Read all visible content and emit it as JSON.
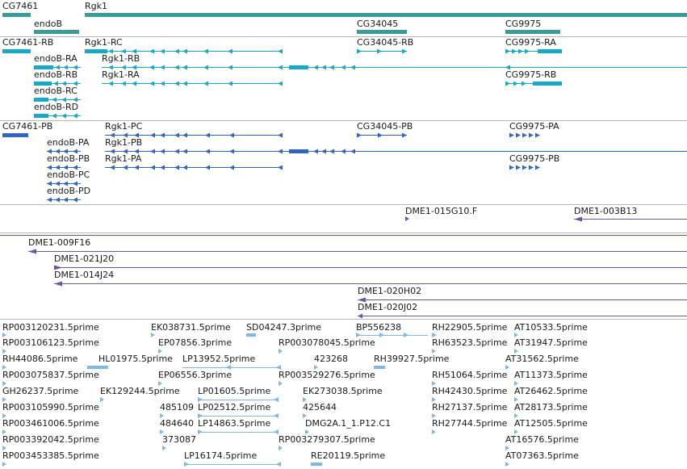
{
  "colors": {
    "gene": "#3a9c98",
    "mrna": "#17a8c9",
    "protein": "#2f66c6",
    "clone": "#6b55a3",
    "est": "#80b7de",
    "separator": "#b8b8b8",
    "text": "#1a1a1a"
  },
  "tracks": {
    "genes": {
      "items": [
        {
          "label": "CG7461"
        },
        {
          "label": "Rgk1"
        },
        {
          "label": "endoB"
        },
        {
          "label": "CG34045"
        },
        {
          "label": "CG9975"
        }
      ]
    },
    "transcripts": {
      "items": [
        {
          "label": "CG7461-RB"
        },
        {
          "label": "Rgk1-RC"
        },
        {
          "label": "CG34045-RB"
        },
        {
          "label": "CG9975-RA"
        },
        {
          "label": "endoB-RA"
        },
        {
          "label": "Rgk1-RB"
        },
        {
          "label": "endoB-RB"
        },
        {
          "label": "Rgk1-RA"
        },
        {
          "label": "CG9975-RB"
        },
        {
          "label": "endoB-RC"
        },
        {
          "label": "endoB-RD"
        }
      ]
    },
    "proteins": {
      "items": [
        {
          "label": "CG7461-PB"
        },
        {
          "label": "Rgk1-PC"
        },
        {
          "label": "CG34045-PB"
        },
        {
          "label": "CG9975-PA"
        },
        {
          "label": "endoB-PA"
        },
        {
          "label": "Rgk1-PB"
        },
        {
          "label": "endoB-PB"
        },
        {
          "label": "Rgk1-PA"
        },
        {
          "label": "CG9975-PB"
        },
        {
          "label": "endoB-PC"
        },
        {
          "label": "endoB-PD"
        }
      ]
    },
    "clones_a": {
      "items": [
        {
          "label": "DME1-015G10.F"
        },
        {
          "label": "DME1-003B13"
        }
      ]
    },
    "clones_b": {
      "items": [
        {
          "label": "DME1-009F16"
        },
        {
          "label": "DME1-021J20"
        },
        {
          "label": "DME1-014J24"
        },
        {
          "label": "DME1-020H02"
        },
        {
          "label": "DME1-020J02"
        }
      ]
    },
    "ests": {
      "items": [
        {
          "label": "RP003120231.5prime"
        },
        {
          "label": "EK038731.5prime"
        },
        {
          "label": "SD04247.3prime"
        },
        {
          "label": "BP556238"
        },
        {
          "label": "RH22905.5prime"
        },
        {
          "label": "AT10533.5prime"
        },
        {
          "label": "RP003106123.5prime"
        },
        {
          "label": "EP07856.3prime"
        },
        {
          "label": "RP003078045.5prime"
        },
        {
          "label": "RH63523.5prime"
        },
        {
          "label": "AT31947.5prime"
        },
        {
          "label": "RH44086.5prime"
        },
        {
          "label": "HL01975.5prime"
        },
        {
          "label": "LP13952.5prime"
        },
        {
          "label": "423268"
        },
        {
          "label": "RH39927.5prime"
        },
        {
          "label": "AT31562.5prime"
        },
        {
          "label": "RP003075837.5prime"
        },
        {
          "label": "EP06556.3prime"
        },
        {
          "label": "RP003529276.5prime"
        },
        {
          "label": "RH51064.5prime"
        },
        {
          "label": "AT11373.5prime"
        },
        {
          "label": "GH26237.5prime"
        },
        {
          "label": "EK129244.5prime"
        },
        {
          "label": "LP01605.5prime"
        },
        {
          "label": "EK273038.5prime"
        },
        {
          "label": "RH42430.5prime"
        },
        {
          "label": "AT26462.5prime"
        },
        {
          "label": "RP003105990.5prime"
        },
        {
          "label": "485109"
        },
        {
          "label": "LP02512.5prime"
        },
        {
          "label": "425644"
        },
        {
          "label": "RH27137.5prime"
        },
        {
          "label": "AT28173.5prime"
        },
        {
          "label": "RP003461006.5prime"
        },
        {
          "label": "484640"
        },
        {
          "label": "LP14863.5prime"
        },
        {
          "label": "DMG2A.1_1.P12.C1"
        },
        {
          "label": "RH27744.5prime"
        },
        {
          "label": "AT12505.5prime"
        },
        {
          "label": "RP003392042.5prime"
        },
        {
          "label": "373087"
        },
        {
          "label": "RP003279307.5prime"
        },
        {
          "label": "AT16576.5prime"
        },
        {
          "label": "RP003453385.5prime"
        },
        {
          "label": "LP16174.5prime"
        },
        {
          "label": "RE20119.5prime"
        },
        {
          "label": "AT07363.5prime"
        }
      ]
    }
  }
}
